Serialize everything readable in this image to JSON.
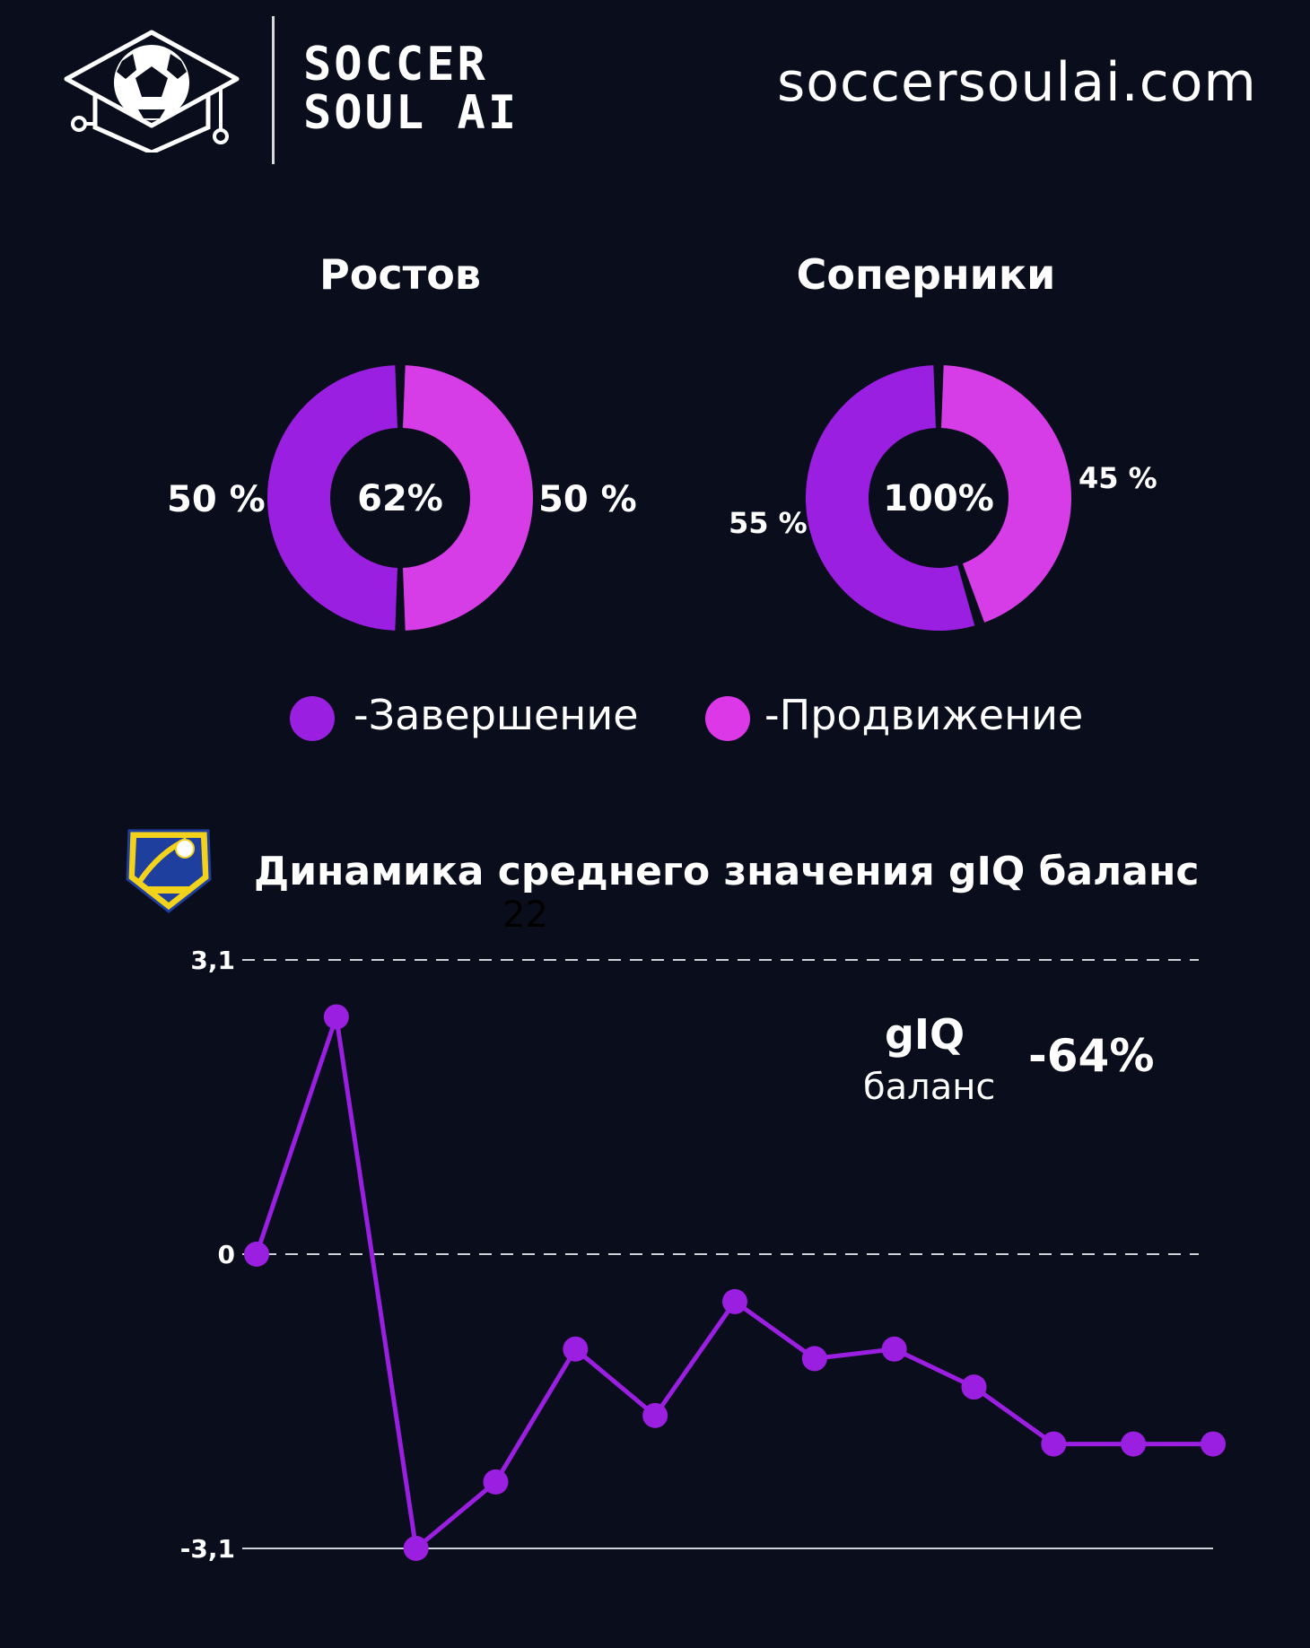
{
  "header": {
    "logo_line1": "SOCCER",
    "logo_line2": "SOUL AI",
    "site_url": "soccersoulai.com"
  },
  "donuts": [
    {
      "title": "Ростов",
      "center": "62%",
      "segments": [
        {
          "key": "completion",
          "value": 50,
          "label": "50 %",
          "color": "#9b1fe0"
        },
        {
          "key": "progress",
          "value": 50,
          "label": "50 %",
          "color": "#d63de6"
        }
      ]
    },
    {
      "title": "Соперники",
      "center": "100%",
      "segments": [
        {
          "key": "completion",
          "value": 55,
          "label": "55 %",
          "color": "#9b1fe0"
        },
        {
          "key": "progress",
          "value": 45,
          "label": "45 %",
          "color": "#d63de6"
        }
      ]
    }
  ],
  "legend": [
    {
      "label": "-Завершение",
      "color": "#9b1fe0"
    },
    {
      "label": "-Продвижение",
      "color": "#dd38e8"
    }
  ],
  "section": {
    "title": "Динамика среднего значения gIQ баланс",
    "stray_label": "22"
  },
  "metric": {
    "name": "gIQ",
    "sub": "баланс",
    "value": "-64%"
  },
  "colors": {
    "background": "#0a0d1c",
    "line": "#9b1fe0"
  },
  "chart_data": {
    "type": "line",
    "title": "Динамика среднего значения gIQ баланс",
    "x": [
      1,
      2,
      3,
      4,
      5,
      6,
      7,
      8,
      9,
      10,
      11,
      12,
      13
    ],
    "series": [
      {
        "values": [
          0,
          2.5,
          -3.1,
          -2.4,
          -1.0,
          -1.7,
          -0.5,
          -1.1,
          -1.0,
          -1.4,
          -2.0,
          -2.0,
          -2.0
        ]
      }
    ],
    "ylim": [
      -3.1,
      3.1
    ],
    "yticks": [
      "3,1",
      "0",
      "-3,1"
    ],
    "grid": true
  }
}
